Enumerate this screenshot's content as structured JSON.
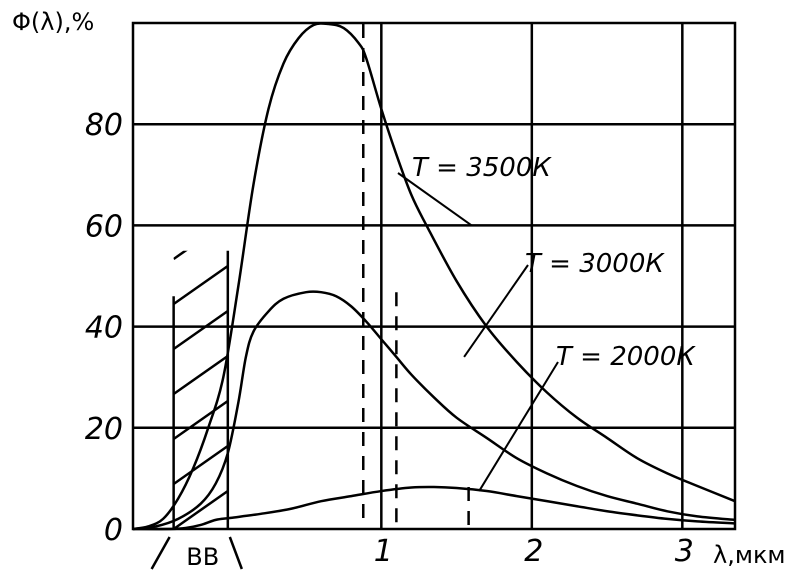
{
  "chart_data": {
    "type": "line",
    "ylabel": "Φ(λ),%",
    "xlabel": "λ,мкм",
    "xlim": [
      -0.65,
      3.35
    ],
    "ylim": [
      0,
      100
    ],
    "x_ticks": [
      {
        "v": 1,
        "label": "1"
      },
      {
        "v": 2,
        "label": "2"
      },
      {
        "v": 3,
        "label": "3"
      }
    ],
    "y_ticks": [
      {
        "v": 0,
        "label": "0"
      },
      {
        "v": 20,
        "label": "20"
      },
      {
        "v": 40,
        "label": "40"
      },
      {
        "v": 60,
        "label": "60"
      },
      {
        "v": 80,
        "label": "80"
      }
    ],
    "grid": true,
    "region": {
      "label": "ВВ",
      "x_from": -0.38,
      "x_to": -0.02
    },
    "peak_lines": [
      0.88,
      1.1,
      1.58
    ],
    "series": [
      {
        "name": "T = 3500К",
        "color": "#000000",
        "points": [
          [
            -0.65,
            0
          ],
          [
            -0.55,
            0.5
          ],
          [
            -0.45,
            2
          ],
          [
            -0.35,
            6
          ],
          [
            -0.25,
            12
          ],
          [
            -0.15,
            20
          ],
          [
            -0.05,
            30
          ],
          [
            0.05,
            48
          ],
          [
            0.15,
            68
          ],
          [
            0.25,
            83
          ],
          [
            0.35,
            92
          ],
          [
            0.45,
            97
          ],
          [
            0.55,
            99.6
          ],
          [
            0.65,
            99.8
          ],
          [
            0.75,
            99
          ],
          [
            0.85,
            96
          ],
          [
            0.9,
            93
          ],
          [
            1.0,
            83
          ],
          [
            1.1,
            74
          ],
          [
            1.2,
            66
          ],
          [
            1.3,
            60
          ],
          [
            1.5,
            49
          ],
          [
            1.7,
            40
          ],
          [
            1.9,
            33
          ],
          [
            2.1,
            27
          ],
          [
            2.3,
            22
          ],
          [
            2.5,
            18
          ],
          [
            2.7,
            14
          ],
          [
            2.9,
            11
          ],
          [
            3.1,
            8.5
          ],
          [
            3.35,
            5.5
          ]
        ]
      },
      {
        "name": "T = 3000К",
        "color": "#000000",
        "points": [
          [
            -0.65,
            0
          ],
          [
            -0.5,
            0.5
          ],
          [
            -0.35,
            2
          ],
          [
            -0.2,
            5
          ],
          [
            -0.1,
            9
          ],
          [
            -0.02,
            15
          ],
          [
            0.05,
            25
          ],
          [
            0.1,
            34
          ],
          [
            0.15,
            39
          ],
          [
            0.25,
            43
          ],
          [
            0.35,
            45.5
          ],
          [
            0.5,
            46.8
          ],
          [
            0.6,
            46.8
          ],
          [
            0.7,
            46
          ],
          [
            0.8,
            44
          ],
          [
            0.9,
            41
          ],
          [
            1.0,
            37.5
          ],
          [
            1.1,
            34
          ],
          [
            1.2,
            30.5
          ],
          [
            1.35,
            26
          ],
          [
            1.5,
            22
          ],
          [
            1.7,
            18
          ],
          [
            1.9,
            14
          ],
          [
            2.1,
            11
          ],
          [
            2.3,
            8.5
          ],
          [
            2.5,
            6.5
          ],
          [
            2.7,
            5
          ],
          [
            2.9,
            3.5
          ],
          [
            3.1,
            2.5
          ],
          [
            3.35,
            1.8
          ]
        ]
      },
      {
        "name": "T = 2000К",
        "color": "#000000",
        "points": [
          [
            -0.65,
            0
          ],
          [
            -0.4,
            0
          ],
          [
            -0.3,
            0.2
          ],
          [
            -0.2,
            0.8
          ],
          [
            -0.1,
            1.8
          ],
          [
            0.0,
            2.2
          ],
          [
            0.2,
            3
          ],
          [
            0.4,
            4
          ],
          [
            0.6,
            5.5
          ],
          [
            0.8,
            6.5
          ],
          [
            1.0,
            7.5
          ],
          [
            1.2,
            8.2
          ],
          [
            1.35,
            8.3
          ],
          [
            1.5,
            8.1
          ],
          [
            1.7,
            7.5
          ],
          [
            1.9,
            6.5
          ],
          [
            2.1,
            5.5
          ],
          [
            2.3,
            4.5
          ],
          [
            2.5,
            3.5
          ],
          [
            2.7,
            2.7
          ],
          [
            2.9,
            2
          ],
          [
            3.1,
            1.5
          ],
          [
            3.35,
            1.1
          ]
        ]
      }
    ],
    "annotations": [
      {
        "text": "T = 3500К",
        "target": [
          1.6,
          60
        ]
      },
      {
        "text": "T = 3000К",
        "target": [
          1.55,
          34
        ]
      },
      {
        "text": "T = 2000К",
        "target": [
          1.65,
          7.5
        ]
      }
    ]
  }
}
